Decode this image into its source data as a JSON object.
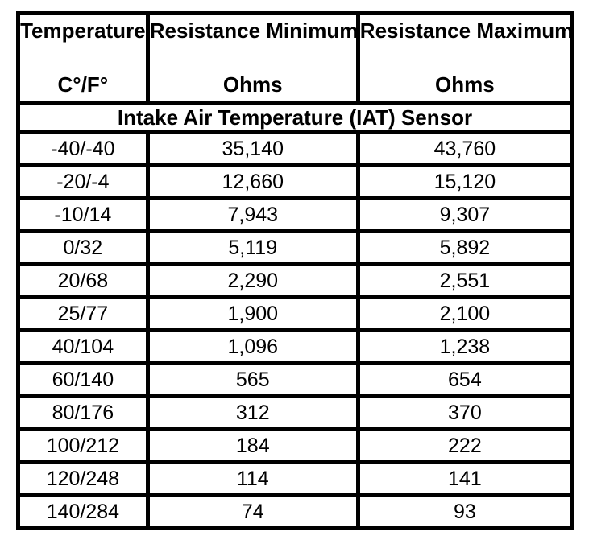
{
  "table": {
    "columns": [
      {
        "title": "Temperature",
        "unit": "C°/F°"
      },
      {
        "title": "Resistance Minimum",
        "unit": "Ohms"
      },
      {
        "title": "Resistance Maximum",
        "unit": "Ohms"
      }
    ],
    "section_title": "Intake Air Temperature (IAT) Sensor",
    "rows": [
      {
        "temp": "-40/-40",
        "min": "35,140",
        "max": "43,760"
      },
      {
        "temp": "-20/-4",
        "min": "12,660",
        "max": "15,120"
      },
      {
        "temp": "-10/14",
        "min": "7,943",
        "max": "9,307"
      },
      {
        "temp": "0/32",
        "min": "5,119",
        "max": "5,892"
      },
      {
        "temp": "20/68",
        "min": "2,290",
        "max": "2,551"
      },
      {
        "temp": "25/77",
        "min": "1,900",
        "max": "2,100"
      },
      {
        "temp": "40/104",
        "min": "1,096",
        "max": "1,238"
      },
      {
        "temp": "60/140",
        "min": "565",
        "max": "654"
      },
      {
        "temp": "80/176",
        "min": "312",
        "max": "370"
      },
      {
        "temp": "100/212",
        "min": "184",
        "max": "222"
      },
      {
        "temp": "120/248",
        "min": "114",
        "max": "141"
      },
      {
        "temp": "140/284",
        "min": "74",
        "max": "93"
      }
    ],
    "colors": {
      "border": "#000000",
      "background": "#ffffff",
      "text": "#000000"
    }
  }
}
